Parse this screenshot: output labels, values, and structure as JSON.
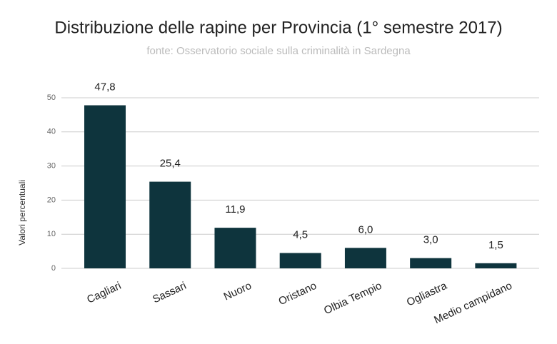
{
  "chart_data": {
    "type": "bar",
    "title": "Distribuzione delle rapine per Provincia (1° semestre 2017)",
    "subtitle": "fonte: Osservatorio sociale sulla criminalità in Sardegna",
    "y_label": "Valori percentuali",
    "categories": [
      "Cagliari",
      "Sassari",
      "Nuoro",
      "Oristano",
      "Olbia Tempio",
      "Ogliastra",
      "Medio campidano"
    ],
    "values": [
      47.8,
      25.4,
      11.9,
      4.5,
      6.0,
      3.0,
      1.5
    ],
    "value_labels": [
      "47,8",
      "25,4",
      "11,9",
      "4,5",
      "6,0",
      "3,0",
      "1,5"
    ],
    "color": "#0e343d",
    "ylim": [
      0,
      50
    ],
    "yticks": [
      0,
      10,
      20,
      30,
      40,
      50
    ],
    "grid": true
  }
}
